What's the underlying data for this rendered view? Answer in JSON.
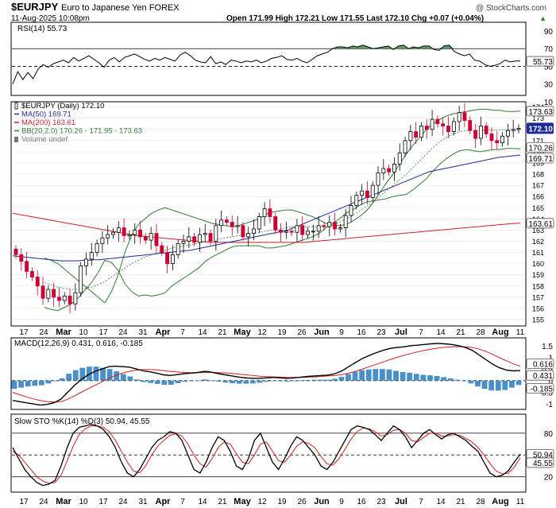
{
  "header": {
    "symbol": "$EURJPY",
    "name": "Euro to Japanese Yen FOREX",
    "date": "11-Aug-2025 10:08pm",
    "copyright": "@ StockCharts.com",
    "quote": "Open 171.99  High 172.21  Low 171.55  Last 172.10  Chg +0.07 (+0.04%)",
    "quote_arrow": "▲"
  },
  "colors": {
    "up_candle": "#000000",
    "down_candle": "#cc0033",
    "ma50": "#1f2a99",
    "ma200": "#cc1f2b",
    "bb": "#2e7d32",
    "bb_mid": "#2e7d32",
    "rsi_fill": "#2e7d32",
    "macd_hist": "#4a90c8",
    "macd": "#000000",
    "signal": "#d21f1f",
    "stoch_k": "#000000",
    "stoch_d": "#d21f1f",
    "last_tag": "#1f2a99"
  },
  "chart_data": [
    {
      "type": "line",
      "panel": "rsi",
      "title": "RSI(14) 55.73",
      "ylim": [
        18,
        99
      ],
      "y_ticks": [
        90,
        70,
        50,
        30,
        10
      ],
      "ref_lines": [
        70,
        50
      ],
      "last_value": 55.73,
      "last_label": "55.73",
      "series": [
        {
          "values": [
            30,
            44,
            35,
            43,
            36,
            47,
            52,
            49,
            53,
            55,
            57,
            54,
            60,
            56,
            59,
            62,
            58,
            54,
            49,
            57,
            60,
            55,
            60,
            62,
            64,
            61,
            58,
            56,
            59,
            57,
            60,
            58,
            56,
            63,
            66,
            62,
            57,
            55,
            54,
            61,
            53,
            55,
            52,
            57,
            56,
            54,
            56,
            55,
            57,
            54,
            56,
            59,
            60,
            62,
            58,
            57,
            59,
            56,
            54,
            58,
            62,
            64,
            66,
            70,
            72,
            72,
            71,
            73,
            72,
            74,
            72,
            70,
            71,
            72,
            73,
            69,
            73,
            74,
            70,
            72,
            71,
            73,
            73,
            69,
            68,
            73,
            74,
            67,
            64,
            62,
            64,
            57,
            56,
            52,
            50,
            51,
            53,
            57,
            55,
            56,
            56
          ]
        }
      ]
    },
    {
      "type": "candlestick",
      "panel": "price",
      "ylim": [
        154.5,
        174.4
      ],
      "y_ticks": [
        174,
        173,
        172,
        171,
        170,
        169,
        168,
        167,
        166,
        165,
        164,
        163,
        162,
        161,
        160,
        159,
        158,
        157,
        156,
        155
      ],
      "legend": [
        {
          "label": "$EURJPY (Daily) 172.10",
          "color": "#000000",
          "kind": "candle"
        },
        {
          "label": "MA(50) 169.71",
          "color": "#1f2a99",
          "kind": "line"
        },
        {
          "label": "MA(200) 163.61",
          "color": "#cc1f2b",
          "kind": "line"
        },
        {
          "label": "BB(20,2.0) 170.26 - 171.95 - 173.63",
          "color": "#2e7d32",
          "kind": "line"
        },
        {
          "label": "Volume undef",
          "color": "#777777",
          "kind": "bars"
        }
      ],
      "last_close": 172.1,
      "ma50": [
        160.7,
        160.65,
        160.6,
        160.55,
        160.5,
        160.45,
        160.4,
        160.35,
        160.3,
        160.25,
        160.25,
        160.25,
        160.25,
        160.3,
        160.3,
        160.35,
        160.35,
        160.4,
        160.45,
        160.5,
        160.55,
        160.6,
        160.65,
        160.7,
        160.75,
        160.8,
        160.85,
        160.9,
        160.95,
        161.0,
        161.05,
        161.1,
        161.15,
        161.2,
        161.3,
        161.4,
        161.5,
        161.6,
        161.7,
        161.8,
        161.9,
        162.0,
        162.1,
        162.2,
        162.3,
        162.4,
        162.5,
        162.6,
        162.7,
        162.8,
        162.9,
        163.0,
        163.2,
        163.4,
        163.6,
        163.8,
        164.0,
        164.2,
        164.4,
        164.6,
        164.8,
        165.0,
        165.2,
        165.4,
        165.6,
        165.8,
        166.0,
        166.2,
        166.4,
        166.6,
        166.8,
        167.0,
        167.2,
        167.4,
        167.6,
        167.8,
        168.0,
        168.2,
        168.3,
        168.4,
        168.5,
        168.6,
        168.7,
        168.8,
        168.9,
        169.0,
        169.1,
        169.2,
        169.3,
        169.4,
        169.5,
        169.55,
        169.6,
        169.65,
        169.71
      ],
      "ma200": [
        164.5,
        164.4,
        164.3,
        164.2,
        164.1,
        164.0,
        163.9,
        163.8,
        163.7,
        163.6,
        163.5,
        163.4,
        163.3,
        163.2,
        163.1,
        163.0,
        162.9,
        162.8,
        162.7,
        162.6,
        162.5,
        162.45,
        162.4,
        162.35,
        162.3,
        162.25,
        162.2,
        162.15,
        162.1,
        162.05,
        162.0,
        161.95,
        161.9,
        161.9,
        161.9,
        161.9,
        161.9,
        161.9,
        161.9,
        161.9,
        161.9,
        161.9,
        161.9,
        161.9,
        161.9,
        161.9,
        161.9,
        161.9,
        161.95,
        162.0,
        162.05,
        162.1,
        162.15,
        162.2,
        162.25,
        162.3,
        162.35,
        162.4,
        162.45,
        162.5,
        162.55,
        162.6,
        162.65,
        162.7,
        162.75,
        162.8,
        162.85,
        162.9,
        162.95,
        163.0,
        163.05,
        163.1,
        163.15,
        163.2,
        163.25,
        163.3,
        163.35,
        163.4,
        163.45,
        163.5,
        163.55,
        163.6,
        163.61
      ],
      "bb_upper": [
        160.5,
        160.3,
        160.0,
        159.5,
        159.0,
        158.5,
        158.0,
        157.5,
        157.0,
        156.5,
        157.5,
        159.0,
        161.0,
        162.5,
        163.5,
        164.0,
        164.5,
        164.8,
        165.0,
        164.8,
        164.6,
        164.4,
        164.2,
        164.0,
        163.8,
        163.6,
        163.5,
        163.4,
        163.3,
        163.4,
        163.6,
        163.8,
        164.0,
        164.4,
        164.6,
        164.7,
        164.8,
        164.8,
        164.6,
        164.4,
        164.2,
        163.9,
        163.6,
        163.4,
        163.4,
        163.5,
        163.8,
        164.2,
        164.7,
        165.4,
        166.3,
        167.2,
        168.0,
        168.9,
        169.8,
        170.6,
        171.3,
        172.0,
        172.5,
        172.9,
        173.2,
        173.4,
        173.5,
        173.6,
        173.7,
        173.8,
        173.8,
        173.7,
        173.7,
        173.6,
        173.6,
        173.63
      ],
      "bb_mid": [
        158.3,
        158.1,
        157.9,
        157.8,
        157.7,
        157.7,
        157.8,
        157.9,
        158.1,
        158.4,
        158.8,
        159.2,
        159.6,
        160.0,
        160.3,
        160.6,
        160.8,
        161.0,
        161.2,
        161.4,
        161.5,
        161.6,
        161.7,
        161.8,
        162.0,
        162.1,
        162.2,
        162.3,
        162.4,
        162.5,
        162.6,
        162.7,
        162.8,
        162.9,
        163.0,
        163.1,
        163.2,
        163.3,
        163.3,
        163.3,
        163.3,
        163.3,
        163.4,
        163.5,
        163.7,
        164.0,
        164.3,
        164.7,
        165.1,
        165.5,
        166.0,
        166.5,
        167.0,
        167.5,
        168.0,
        168.6,
        169.2,
        169.8,
        170.4,
        170.9,
        171.3,
        171.6,
        171.8,
        171.9,
        171.9,
        171.9,
        171.95,
        171.95,
        171.95,
        171.95,
        171.95,
        171.95
      ],
      "bb_lower": [
        156.1,
        155.9,
        155.8,
        156.1,
        156.4,
        156.9,
        157.6,
        158.3,
        159.2,
        160.3,
        160.1,
        159.4,
        158.2,
        157.5,
        157.1,
        157.2,
        157.1,
        157.2,
        157.4,
        158.0,
        158.4,
        158.8,
        159.2,
        159.6,
        160.2,
        160.6,
        160.9,
        161.2,
        161.5,
        161.6,
        161.6,
        161.6,
        161.6,
        161.4,
        161.4,
        161.5,
        161.6,
        161.8,
        162.0,
        162.2,
        162.4,
        162.7,
        163.2,
        163.6,
        164.0,
        164.5,
        164.8,
        165.2,
        165.5,
        165.6,
        165.7,
        165.8,
        166.0,
        166.1,
        166.2,
        166.6,
        167.1,
        167.6,
        168.3,
        168.9,
        169.4,
        169.8,
        170.1,
        170.2,
        170.1,
        170.0,
        170.1,
        170.2,
        170.2,
        170.3,
        170.3,
        170.26
      ],
      "ohlc_close": [
        160.8,
        160.2,
        159.3,
        158.8,
        158.0,
        156.9,
        157.7,
        157.0,
        156.7,
        157.1,
        156.4,
        157.4,
        159.8,
        160.4,
        161.0,
        161.8,
        162.3,
        162.6,
        162.8,
        163.2,
        162.5,
        162.6,
        163.0,
        162.4,
        162.1,
        162.7,
        161.6,
        161.0,
        160.0,
        160.8,
        161.8,
        162.0,
        162.4,
        161.9,
        162.6,
        162.7,
        162.0,
        163.4,
        163.9,
        163.7,
        163.3,
        163.4,
        162.4,
        162.7,
        163.1,
        164.2,
        164.9,
        164.2,
        163.0,
        162.8,
        162.9,
        162.8,
        163.4,
        162.6,
        162.9,
        162.9,
        163.4,
        163.3,
        163.7,
        163.1,
        163.2,
        164.3,
        165.2,
        166.1,
        166.5,
        165.9,
        167.0,
        168.1,
        168.5,
        168.2,
        168.9,
        169.9,
        171.0,
        171.8,
        171.3,
        172.3,
        172.0,
        172.9,
        172.5,
        172.3,
        171.8,
        172.7,
        173.5,
        172.8,
        171.9,
        171.2,
        172.3,
        171.6,
        171.0,
        170.8,
        171.4,
        171.9,
        172.0,
        172.1
      ],
      "ohlc_open": [
        161.3,
        160.8,
        160.2,
        159.3,
        158.8,
        158.0,
        156.9,
        157.7,
        157.0,
        156.7,
        157.1,
        156.4,
        157.4,
        159.8,
        160.4,
        161.0,
        161.8,
        162.3,
        162.6,
        162.8,
        163.2,
        162.5,
        162.6,
        163.0,
        162.4,
        162.1,
        162.7,
        161.6,
        161.0,
        160.0,
        160.8,
        161.8,
        162.0,
        162.4,
        161.9,
        162.6,
        162.7,
        162.0,
        163.4,
        163.9,
        163.7,
        163.3,
        163.4,
        162.4,
        162.7,
        163.1,
        164.2,
        164.9,
        164.2,
        163.0,
        162.8,
        162.9,
        162.8,
        163.4,
        162.6,
        162.9,
        162.9,
        163.4,
        163.3,
        163.7,
        163.1,
        163.2,
        164.3,
        165.2,
        166.1,
        166.5,
        165.9,
        167.0,
        168.1,
        168.5,
        168.2,
        168.9,
        169.9,
        171.0,
        171.8,
        171.3,
        172.3,
        172.0,
        172.9,
        172.5,
        172.3,
        171.8,
        172.7,
        173.5,
        172.8,
        171.9,
        171.2,
        172.3,
        171.6,
        171.0,
        170.8,
        171.4,
        171.9,
        171.99
      ]
    },
    {
      "type": "line",
      "panel": "macd",
      "title": "MACD(12,26,9) 0.431, 0.616, -0.185",
      "ylim": [
        -1.2,
        1.8
      ],
      "y_ticks": [
        1.5,
        1.0,
        0.5,
        0.0,
        -0.5,
        -1.0
      ],
      "last_labels": [
        "0.616",
        "0.431",
        "-0.185"
      ],
      "series": [
        {
          "values": [
            -0.85,
            -0.9,
            -0.95,
            -1.0,
            -1.05,
            -1.02,
            -0.95,
            -0.8,
            -0.5,
            -0.2,
            0.05,
            0.25,
            0.4,
            0.5,
            0.6,
            0.62,
            0.6,
            0.58,
            0.5,
            0.42,
            0.38,
            0.32,
            0.25,
            0.22,
            0.26,
            0.3,
            0.32,
            0.35,
            0.4,
            0.36,
            0.3,
            0.25,
            0.2,
            0.15,
            0.12,
            0.1,
            0.1,
            0.12,
            0.14,
            0.12,
            0.1,
            0.12,
            0.15,
            0.18,
            0.2,
            0.22,
            0.24,
            0.3,
            0.42,
            0.6,
            0.78,
            0.95,
            1.08,
            1.2,
            1.3,
            1.38,
            1.42,
            1.45,
            1.5,
            1.52,
            1.55,
            1.58,
            1.6,
            1.58,
            1.55,
            1.5,
            1.42,
            1.3,
            1.1,
            0.9,
            0.7,
            0.55,
            0.45,
            0.42,
            0.43
          ]
        },
        {
          "values": [
            -0.5,
            -0.6,
            -0.7,
            -0.78,
            -0.85,
            -0.9,
            -0.92,
            -0.9,
            -0.8,
            -0.65,
            -0.5,
            -0.35,
            -0.2,
            -0.05,
            0.1,
            0.22,
            0.32,
            0.4,
            0.45,
            0.48,
            0.48,
            0.46,
            0.43,
            0.4,
            0.37,
            0.35,
            0.34,
            0.34,
            0.35,
            0.35,
            0.34,
            0.33,
            0.31,
            0.28,
            0.25,
            0.22,
            0.19,
            0.17,
            0.16,
            0.15,
            0.14,
            0.14,
            0.14,
            0.15,
            0.16,
            0.18,
            0.2,
            0.22,
            0.26,
            0.32,
            0.4,
            0.5,
            0.6,
            0.7,
            0.8,
            0.9,
            1.0,
            1.08,
            1.16,
            1.23,
            1.3,
            1.35,
            1.4,
            1.43,
            1.45,
            1.46,
            1.45,
            1.42,
            1.35,
            1.25,
            1.12,
            0.98,
            0.85,
            0.72,
            0.62
          ]
        }
      ]
    },
    {
      "type": "line",
      "panel": "stoch",
      "title": "Slow STO %K(14) %D(3) 50.94, 45.55",
      "ylim": [
        0,
        105
      ],
      "y_ticks": [
        80,
        50,
        20
      ],
      "ref_lines": [
        80,
        50,
        20
      ],
      "last_labels": [
        "50.94",
        "45.55"
      ],
      "series": [
        {
          "values": [
            60,
            45,
            30,
            20,
            12,
            8,
            10,
            15,
            35,
            60,
            80,
            88,
            90,
            92,
            90,
            85,
            75,
            60,
            40,
            25,
            20,
            30,
            45,
            60,
            70,
            75,
            82,
            80,
            70,
            50,
            30,
            25,
            40,
            60,
            75,
            70,
            55,
            35,
            30,
            45,
            70,
            80,
            60,
            40,
            30,
            45,
            62,
            75,
            70,
            60,
            50,
            35,
            30,
            40,
            55,
            70,
            85,
            90,
            88,
            85,
            78,
            70,
            80,
            90,
            85,
            75,
            60,
            70,
            80,
            85,
            78,
            72,
            78,
            80,
            75,
            70,
            62,
            55,
            40,
            25,
            20,
            22,
            28,
            40,
            51
          ]
        },
        {
          "values": [
            55,
            50,
            40,
            30,
            20,
            14,
            11,
            12,
            22,
            42,
            62,
            78,
            86,
            90,
            90,
            88,
            82,
            70,
            55,
            40,
            28,
            25,
            35,
            50,
            62,
            70,
            77,
            79,
            76,
            65,
            50,
            38,
            33,
            45,
            60,
            68,
            65,
            52,
            40,
            38,
            50,
            65,
            68,
            55,
            42,
            40,
            50,
            62,
            68,
            66,
            60,
            48,
            38,
            36,
            45,
            58,
            72,
            82,
            87,
            86,
            82,
            76,
            78,
            84,
            85,
            80,
            70,
            68,
            74,
            80,
            80,
            76,
            76,
            78,
            77,
            73,
            68,
            60,
            50,
            38,
            28,
            24,
            25,
            33,
            46
          ]
        }
      ]
    }
  ],
  "date_axis": {
    "labels": [
      "17",
      "24",
      "Mar",
      "10",
      "17",
      "24",
      "31",
      "Apr",
      "7",
      "14",
      "21",
      "May",
      "12",
      "19",
      "26",
      "Jun",
      "9",
      "16",
      "23",
      "Jul",
      "7",
      "14",
      "21",
      "28",
      "Aug",
      "11"
    ]
  }
}
